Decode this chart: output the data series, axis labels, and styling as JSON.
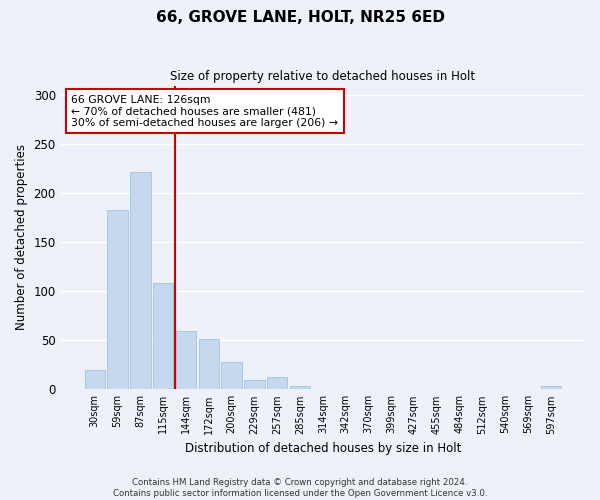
{
  "title": "66, GROVE LANE, HOLT, NR25 6ED",
  "subtitle": "Size of property relative to detached houses in Holt",
  "xlabel": "Distribution of detached houses by size in Holt",
  "ylabel": "Number of detached properties",
  "bar_color": "#c5d8ed",
  "bar_edge_color": "#a8c8e0",
  "background_color": "#eef2f8",
  "grid_color": "#ffffff",
  "bin_labels": [
    "30sqm",
    "59sqm",
    "87sqm",
    "115sqm",
    "144sqm",
    "172sqm",
    "200sqm",
    "229sqm",
    "257sqm",
    "285sqm",
    "314sqm",
    "342sqm",
    "370sqm",
    "399sqm",
    "427sqm",
    "455sqm",
    "484sqm",
    "512sqm",
    "540sqm",
    "569sqm",
    "597sqm"
  ],
  "bar_heights": [
    20,
    183,
    222,
    108,
    60,
    51,
    28,
    10,
    13,
    3,
    0,
    0,
    0,
    0,
    0,
    0,
    0,
    0,
    0,
    0,
    3
  ],
  "vline_x": 3.5,
  "vline_color": "#cc0000",
  "annotation_title": "66 GROVE LANE: 126sqm",
  "annotation_line1": "← 70% of detached houses are smaller (481)",
  "annotation_line2": "30% of semi-detached houses are larger (206) →",
  "annotation_box_color": "#ffffff",
  "annotation_box_edge": "#cc0000",
  "ylim": [
    0,
    310
  ],
  "yticks": [
    0,
    50,
    100,
    150,
    200,
    250,
    300
  ],
  "footnote1": "Contains HM Land Registry data © Crown copyright and database right 2024.",
  "footnote2": "Contains public sector information licensed under the Open Government Licence v3.0."
}
